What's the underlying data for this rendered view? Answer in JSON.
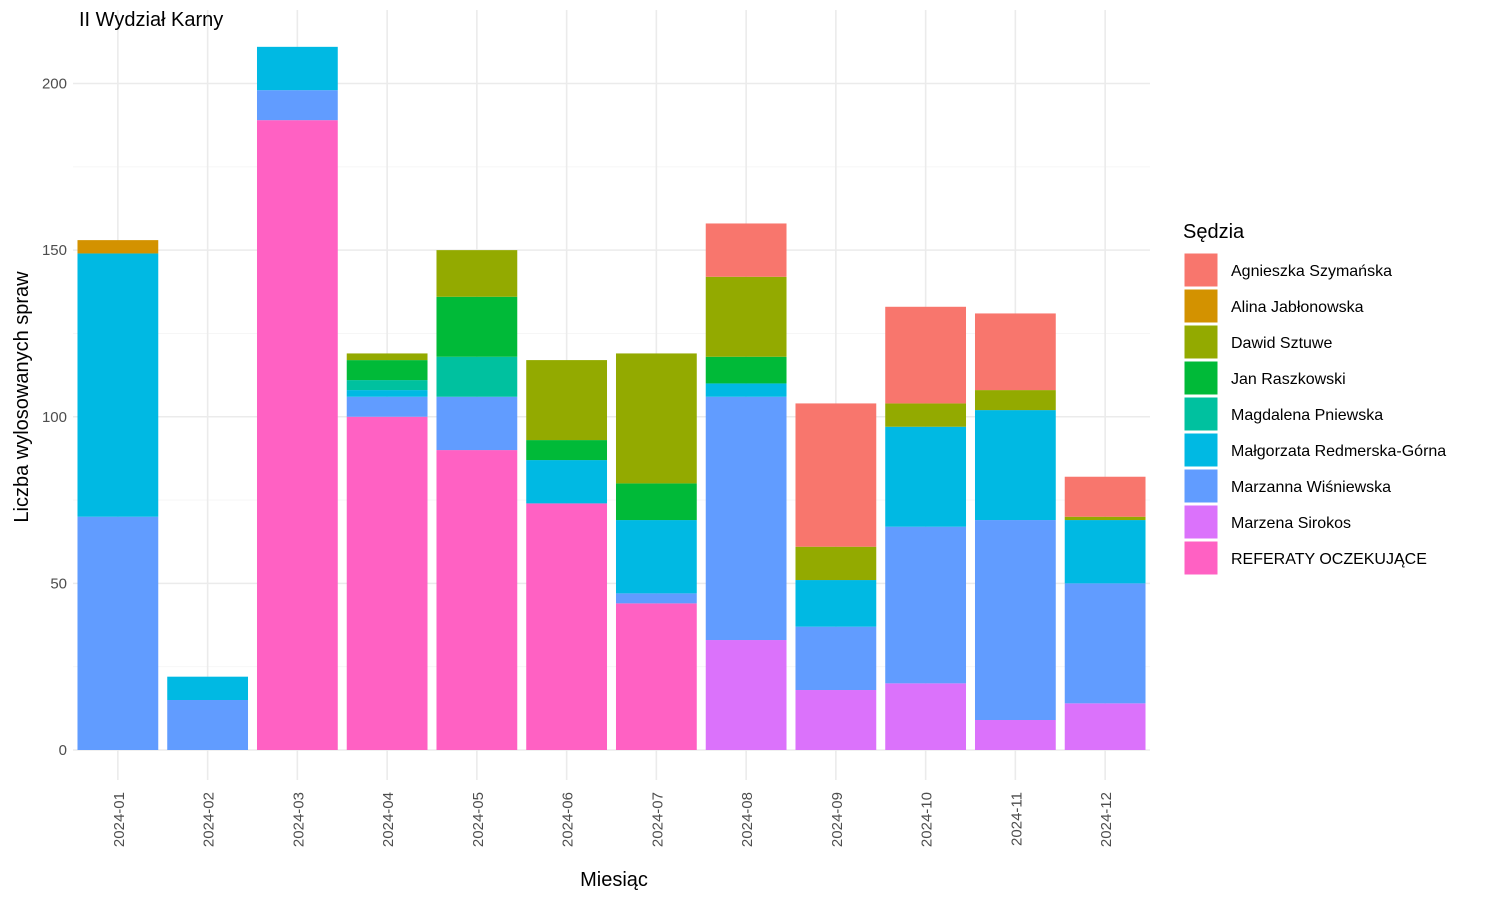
{
  "chart_data": {
    "type": "bar",
    "stacked": true,
    "title": "II Wydział Karny",
    "xlabel": "Miesiąc",
    "ylabel": "Liczba wylosowanych spraw",
    "ylim": [
      0,
      221
    ],
    "yticks": [
      0,
      50,
      100,
      150,
      200
    ],
    "grid": true,
    "legend_title": "Sędzia",
    "legend_position": "right",
    "categories": [
      "2024-01",
      "2024-02",
      "2024-03",
      "2024-04",
      "2024-05",
      "2024-06",
      "2024-07",
      "2024-08",
      "2024-09",
      "2024-10",
      "2024-11",
      "2024-12"
    ],
    "series": [
      {
        "name": "Agnieszka Szymańska",
        "color": "#F8766D",
        "values": [
          0,
          0,
          0,
          0,
          0,
          0,
          0,
          16,
          43,
          29,
          23,
          12
        ]
      },
      {
        "name": "Alina Jabłonowska",
        "color": "#D39200",
        "values": [
          4,
          0,
          0,
          0,
          0,
          0,
          0,
          0,
          0,
          0,
          0,
          0
        ]
      },
      {
        "name": "Dawid Sztuwe",
        "color": "#93AA00",
        "values": [
          0,
          0,
          0,
          2,
          14,
          24,
          39,
          24,
          10,
          7,
          6,
          1
        ]
      },
      {
        "name": "Jan Raszkowski",
        "color": "#00BA38",
        "values": [
          0,
          0,
          0,
          6,
          18,
          6,
          11,
          8,
          0,
          0,
          0,
          0
        ]
      },
      {
        "name": "Magdalena Pniewska",
        "color": "#00C19F",
        "values": [
          0,
          0,
          0,
          3,
          12,
          0,
          0,
          0,
          0,
          0,
          0,
          0
        ]
      },
      {
        "name": "Małgorzata Redmerska-Górna",
        "color": "#00B9E3",
        "values": [
          79,
          7,
          13,
          2,
          0,
          13,
          22,
          4,
          14,
          30,
          33,
          19
        ]
      },
      {
        "name": "Marzanna Wiśniewska",
        "color": "#619CFF",
        "values": [
          70,
          15,
          9,
          6,
          16,
          0,
          3,
          73,
          19,
          47,
          60,
          36
        ]
      },
      {
        "name": "Marzena Sirokos",
        "color": "#DB72FB",
        "values": [
          0,
          0,
          0,
          0,
          0,
          0,
          0,
          33,
          18,
          20,
          9,
          14
        ]
      },
      {
        "name": "REFERATY OCZEKUJĄCE",
        "color": "#FF61C3",
        "values": [
          0,
          0,
          189,
          100,
          90,
          74,
          44,
          0,
          0,
          0,
          0,
          0
        ]
      }
    ]
  }
}
